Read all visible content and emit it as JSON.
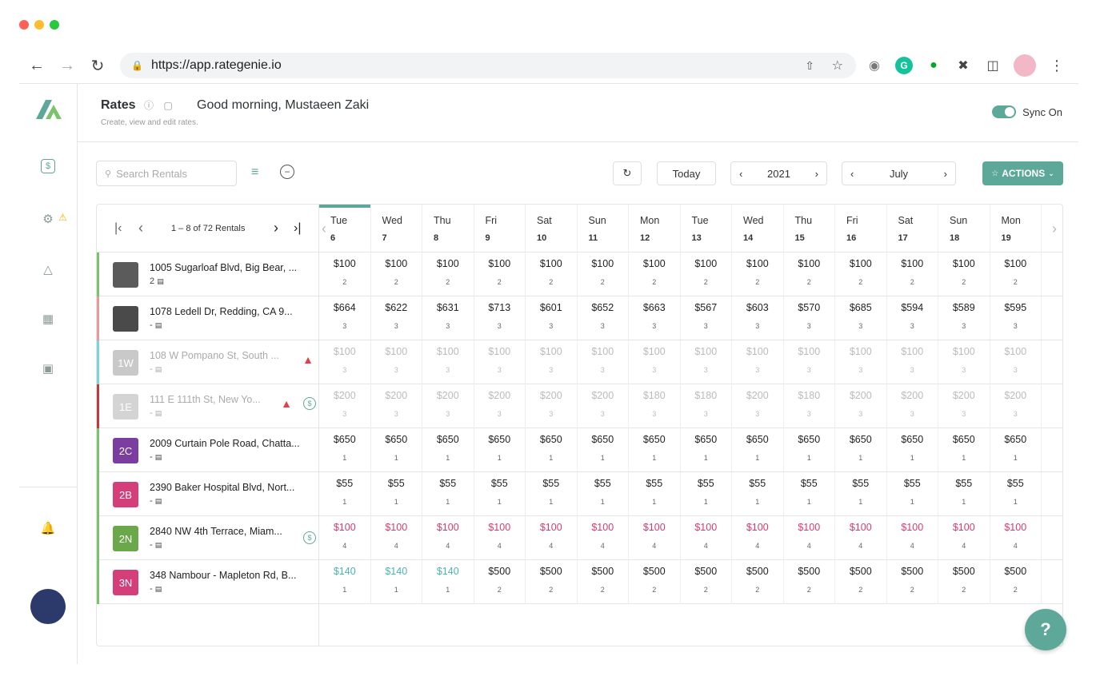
{
  "browser": {
    "url": "https://app.rategenie.io"
  },
  "header": {
    "title": "Rates",
    "subtitle": "Create, view and edit rates.",
    "greeting": "Good morning, Mustaeen Zaki",
    "sync_label": "Sync On",
    "sync_on": true
  },
  "toolbar": {
    "search_placeholder": "Search Rentals",
    "today_label": "Today",
    "year": "2021",
    "month": "July",
    "actions_label": "ACTIONS"
  },
  "pager": {
    "text": "1 – 8 of 72 Rentals"
  },
  "days": [
    {
      "name": "Tue",
      "date": "6"
    },
    {
      "name": "Wed",
      "date": "7"
    },
    {
      "name": "Thu",
      "date": "8"
    },
    {
      "name": "Fri",
      "date": "9"
    },
    {
      "name": "Sat",
      "date": "10"
    },
    {
      "name": "Sun",
      "date": "11"
    },
    {
      "name": "Mon",
      "date": "12"
    },
    {
      "name": "Tue",
      "date": "13"
    },
    {
      "name": "Wed",
      "date": "14"
    },
    {
      "name": "Thu",
      "date": "15"
    },
    {
      "name": "Fri",
      "date": "16"
    },
    {
      "name": "Sat",
      "date": "17"
    },
    {
      "name": "Sun",
      "date": "18"
    },
    {
      "name": "Mon",
      "date": "19"
    }
  ],
  "rentals": [
    {
      "name": "1005 Sugarloaf Blvd, Big Bear, ...",
      "sub": "2",
      "thumb": "",
      "thumb_color": "#5b5b5b",
      "bar_color": "#7cc26a",
      "style": "normal",
      "prices": [
        "$100",
        "$100",
        "$100",
        "$100",
        "$100",
        "$100",
        "$100",
        "$100",
        "$100",
        "$100",
        "$100",
        "$100",
        "$100",
        "$100"
      ],
      "mins": [
        "2",
        "2",
        "2",
        "2",
        "2",
        "2",
        "2",
        "2",
        "2",
        "2",
        "2",
        "2",
        "2",
        "2"
      ]
    },
    {
      "name": "1078 Ledell Dr, Redding, CA 9...",
      "sub": "-",
      "thumb": "",
      "thumb_color": "#4a4a4a",
      "bar_color": "#e29a9a",
      "style": "normal",
      "prices": [
        "$664",
        "$622",
        "$631",
        "$713",
        "$601",
        "$652",
        "$663",
        "$567",
        "$603",
        "$570",
        "$685",
        "$594",
        "$589",
        "$595"
      ],
      "mins": [
        "3",
        "3",
        "3",
        "3",
        "3",
        "3",
        "3",
        "3",
        "3",
        "3",
        "3",
        "3",
        "3",
        "3"
      ]
    },
    {
      "name": "108 W Pompano St, South ...",
      "sub": "-",
      "thumb": "1W",
      "thumb_color": "#c9c9c9",
      "bar_color": "#7dd3d8",
      "style": "dim",
      "prices": [
        "$100",
        "$100",
        "$100",
        "$100",
        "$100",
        "$100",
        "$100",
        "$100",
        "$100",
        "$100",
        "$100",
        "$100",
        "$100",
        "$100"
      ],
      "mins": [
        "3",
        "3",
        "3",
        "3",
        "3",
        "3",
        "3",
        "3",
        "3",
        "3",
        "3",
        "3",
        "3",
        "3"
      ]
    },
    {
      "name": "111 E 111th St, New Yo...",
      "sub": "-",
      "thumb": "1E",
      "thumb_color": "#d4d4d4",
      "bar_color": "#c0393d",
      "style": "dim",
      "prices": [
        "$200",
        "$200",
        "$200",
        "$200",
        "$200",
        "$200",
        "$180",
        "$180",
        "$200",
        "$180",
        "$200",
        "$200",
        "$200",
        "$200"
      ],
      "mins": [
        "3",
        "3",
        "3",
        "3",
        "3",
        "3",
        "3",
        "3",
        "3",
        "3",
        "3",
        "3",
        "3",
        "3"
      ]
    },
    {
      "name": "2009 Curtain Pole Road, Chatta...",
      "sub": "-",
      "thumb": "2C",
      "thumb_color": "#7b3ea0",
      "bar_color": "#7cc26a",
      "style": "normal",
      "prices": [
        "$650",
        "$650",
        "$650",
        "$650",
        "$650",
        "$650",
        "$650",
        "$650",
        "$650",
        "$650",
        "$650",
        "$650",
        "$650",
        "$650"
      ],
      "mins": [
        "1",
        "1",
        "1",
        "1",
        "1",
        "1",
        "1",
        "1",
        "1",
        "1",
        "1",
        "1",
        "1",
        "1"
      ]
    },
    {
      "name": "2390 Baker Hospital Blvd, Nort...",
      "sub": "-",
      "thumb": "2B",
      "thumb_color": "#d43f7a",
      "bar_color": "#7cc26a",
      "style": "normal",
      "prices": [
        "$55",
        "$55",
        "$55",
        "$55",
        "$55",
        "$55",
        "$55",
        "$55",
        "$55",
        "$55",
        "$55",
        "$55",
        "$55",
        "$55"
      ],
      "mins": [
        "1",
        "1",
        "1",
        "1",
        "1",
        "1",
        "1",
        "1",
        "1",
        "1",
        "1",
        "1",
        "1",
        "1"
      ]
    },
    {
      "name": "2840 NW 4th Terrace, Miam...",
      "sub": "-",
      "thumb": "2N",
      "thumb_color": "#6ba84a",
      "bar_color": "#7cc26a",
      "style": "red",
      "prices": [
        "$100",
        "$100",
        "$100",
        "$100",
        "$100",
        "$100",
        "$100",
        "$100",
        "$100",
        "$100",
        "$100",
        "$100",
        "$100",
        "$100"
      ],
      "mins": [
        "4",
        "4",
        "4",
        "4",
        "4",
        "4",
        "4",
        "4",
        "4",
        "4",
        "4",
        "4",
        "4",
        "4"
      ]
    },
    {
      "name": "348 Nambour - Mapleton Rd, B...",
      "sub": "-",
      "thumb": "3N",
      "thumb_color": "#d43f7a",
      "bar_color": "#7cc26a",
      "style": "mixed",
      "prices": [
        "$140",
        "$140",
        "$140",
        "$500",
        "$500",
        "$500",
        "$500",
        "$500",
        "$500",
        "$500",
        "$500",
        "$500",
        "$500",
        "$500"
      ],
      "mins": [
        "1",
        "1",
        "1",
        "2",
        "2",
        "2",
        "2",
        "2",
        "2",
        "2",
        "2",
        "2",
        "2",
        "2"
      ]
    }
  ],
  "help_label": "?"
}
